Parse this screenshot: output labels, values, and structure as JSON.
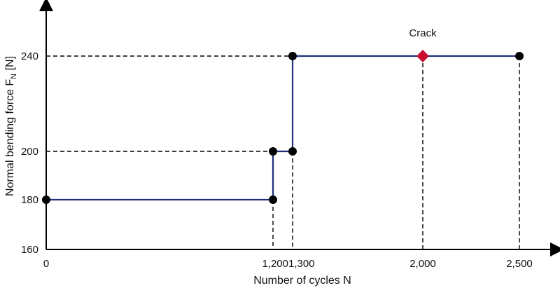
{
  "chart_data": {
    "type": "line",
    "xlabel": "Number of cycles N",
    "ylabel_main": "Normal bending force F",
    "ylabel_sub": "N",
    "ylabel_unit": " [N]",
    "x_ticks": [
      0,
      1200,
      1300,
      2000,
      2500
    ],
    "x_tick_labels": [
      "0",
      "1,200",
      "1,300",
      "2,000",
      "2,500"
    ],
    "y_ticks": [
      160,
      180,
      200,
      240
    ],
    "y_tick_labels": [
      "160",
      "180",
      "200",
      "240"
    ],
    "series": [
      {
        "step_path": [
          [
            0,
            180
          ],
          [
            1200,
            180
          ],
          [
            1200,
            200
          ],
          [
            1300,
            200
          ],
          [
            1300,
            240
          ],
          [
            2500,
            240
          ]
        ],
        "points": [
          [
            0,
            180
          ],
          [
            1200,
            180
          ],
          [
            1200,
            200
          ],
          [
            1300,
            200
          ],
          [
            1300,
            240
          ],
          [
            2500,
            240
          ]
        ]
      }
    ],
    "annotations": [
      {
        "label": "Crack",
        "x": 2000,
        "y": 240,
        "marker": "diamond"
      }
    ],
    "colors": {
      "line": "#1f2f7a",
      "point": "#000000",
      "crack": "#c8102e",
      "axis": "#000000",
      "guide": "#000000"
    },
    "grid": false
  }
}
